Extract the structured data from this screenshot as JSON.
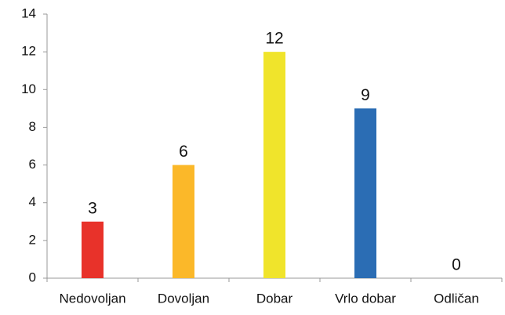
{
  "chart_data": {
    "type": "bar",
    "categories": [
      "Nedovoljan",
      "Dovoljan",
      "Dobar",
      "Vrlo dobar",
      "Odličan"
    ],
    "values": [
      3,
      6,
      12,
      9,
      0
    ],
    "colors": [
      "#e8322a",
      "#fbb829",
      "#f0e42b",
      "#2b6db4",
      null
    ],
    "ylim": [
      0,
      14
    ],
    "yticks": [
      0,
      2,
      4,
      6,
      8,
      10,
      12,
      14
    ],
    "grid": false,
    "data_labels": true
  }
}
